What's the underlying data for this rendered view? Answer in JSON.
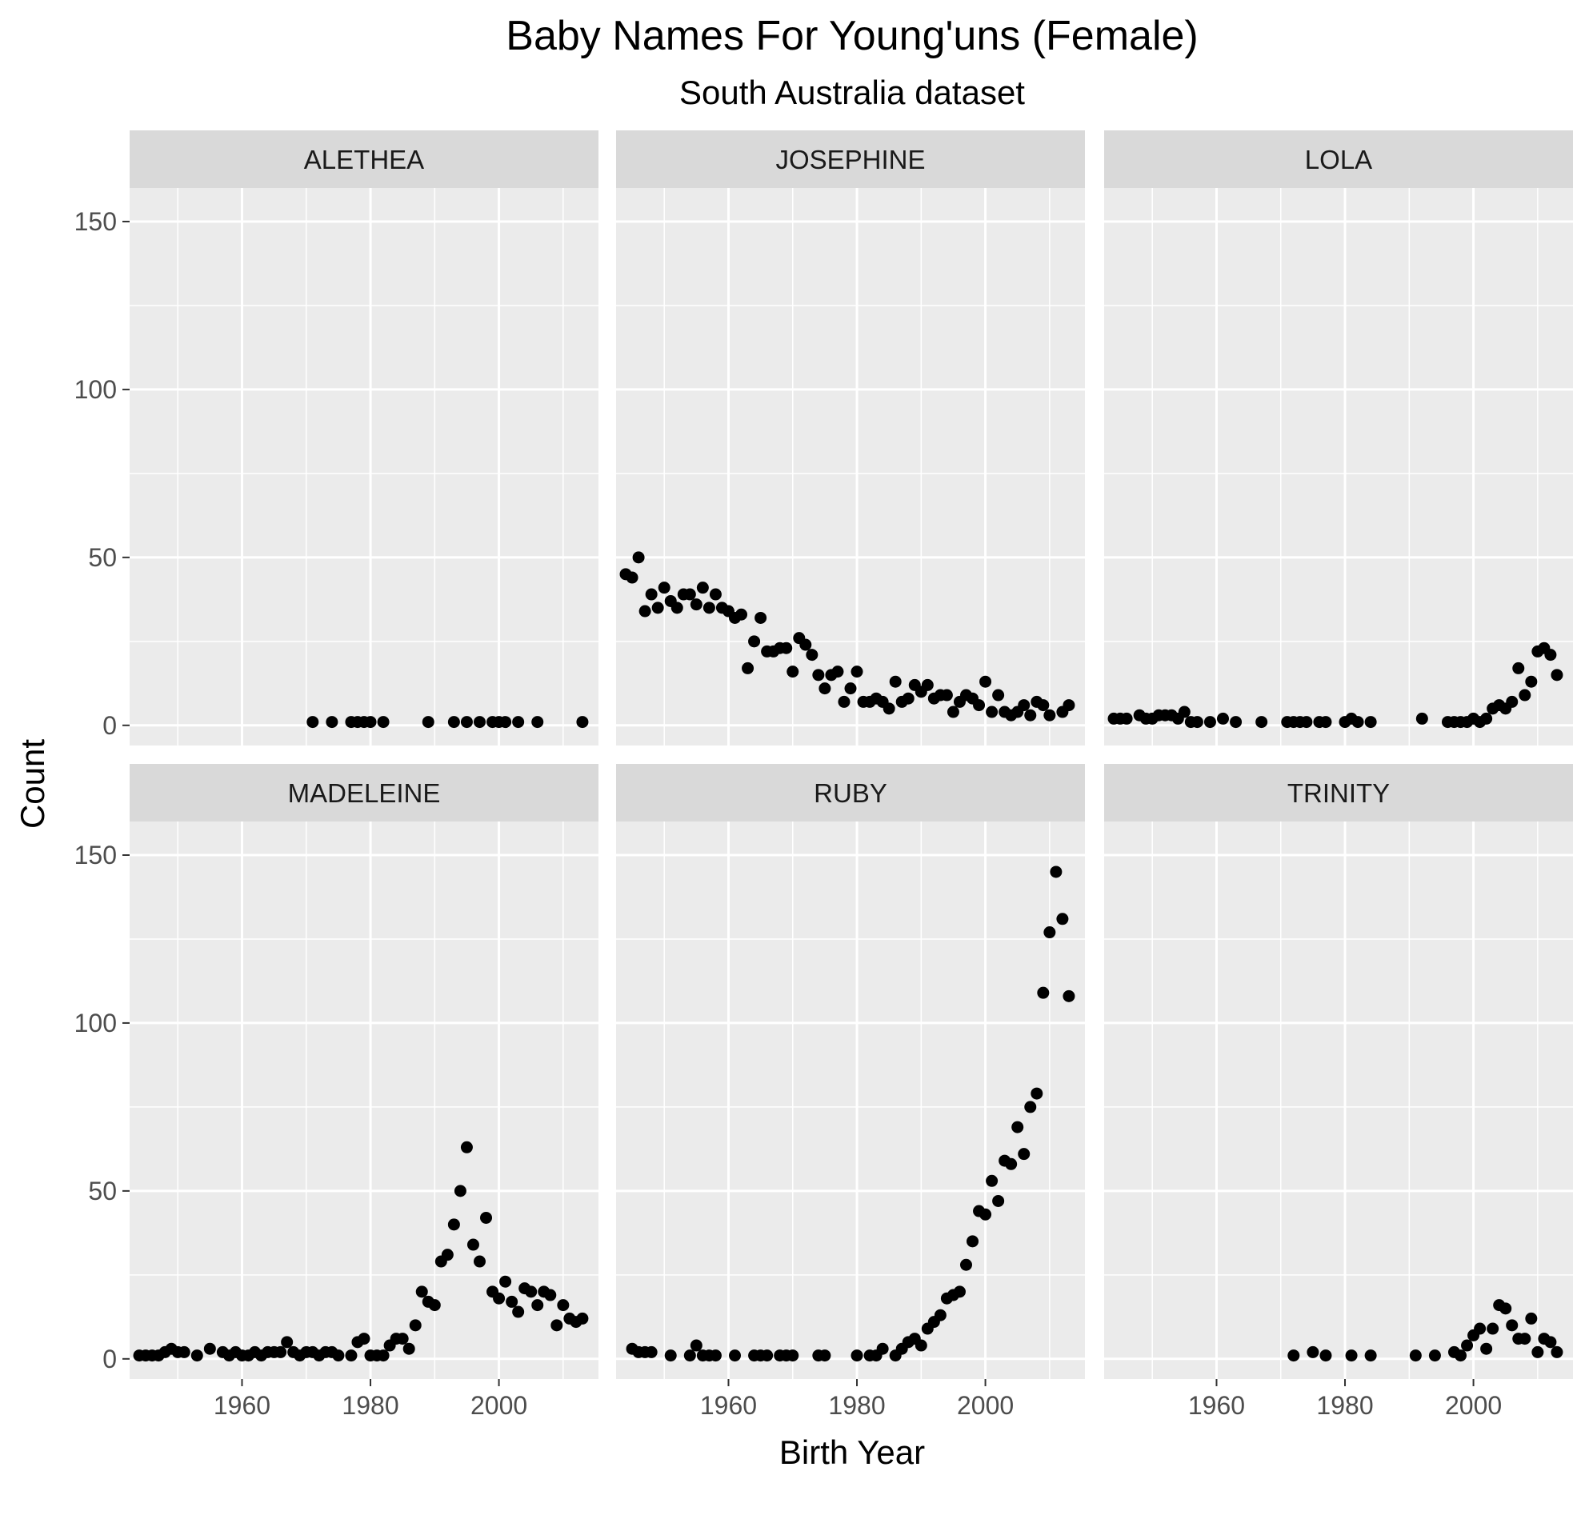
{
  "chart_data": {
    "type": "scatter",
    "title": "Baby Names For Young'uns (Female)",
    "subtitle": "South Australia dataset",
    "xlabel": "Birth Year",
    "ylabel": "Count",
    "xlim": [
      1942.5,
      2015.5
    ],
    "ylim": [
      -6,
      160
    ],
    "x_ticks": [
      1960,
      1980,
      2000
    ],
    "y_ticks": [
      0,
      50,
      100,
      150
    ],
    "grid": true,
    "layout": "facet grid 2 rows x 3 columns, shared axes",
    "colors": {
      "panel": "#ebebeb",
      "strip": "#d9d9d9",
      "gridline": "#ffffff",
      "point": "#000000"
    },
    "panels": [
      {
        "name": "ALETHEA",
        "points": [
          [
            1971,
            1
          ],
          [
            1974,
            1
          ],
          [
            1977,
            1
          ],
          [
            1978,
            1
          ],
          [
            1979,
            1
          ],
          [
            1980,
            1
          ],
          [
            1982,
            1
          ],
          [
            1989,
            1
          ],
          [
            1993,
            1
          ],
          [
            1995,
            1
          ],
          [
            1997,
            1
          ],
          [
            1999,
            1
          ],
          [
            2000,
            1
          ],
          [
            2001,
            1
          ],
          [
            2003,
            1
          ],
          [
            2006,
            1
          ],
          [
            2013,
            1
          ]
        ]
      },
      {
        "name": "JOSEPHINE",
        "points": [
          [
            1944,
            45
          ],
          [
            1945,
            44
          ],
          [
            1946,
            50
          ],
          [
            1947,
            34
          ],
          [
            1948,
            39
          ],
          [
            1949,
            35
          ],
          [
            1950,
            41
          ],
          [
            1951,
            37
          ],
          [
            1952,
            35
          ],
          [
            1953,
            39
          ],
          [
            1954,
            39
          ],
          [
            1955,
            36
          ],
          [
            1956,
            41
          ],
          [
            1957,
            35
          ],
          [
            1958,
            39
          ],
          [
            1959,
            35
          ],
          [
            1960,
            34
          ],
          [
            1961,
            32
          ],
          [
            1962,
            33
          ],
          [
            1963,
            17
          ],
          [
            1964,
            25
          ],
          [
            1965,
            32
          ],
          [
            1966,
            22
          ],
          [
            1967,
            22
          ],
          [
            1968,
            23
          ],
          [
            1969,
            23
          ],
          [
            1970,
            16
          ],
          [
            1971,
            26
          ],
          [
            1972,
            24
          ],
          [
            1973,
            21
          ],
          [
            1974,
            15
          ],
          [
            1975,
            11
          ],
          [
            1976,
            15
          ],
          [
            1977,
            16
          ],
          [
            1978,
            7
          ],
          [
            1979,
            11
          ],
          [
            1980,
            16
          ],
          [
            1981,
            7
          ],
          [
            1982,
            7
          ],
          [
            1983,
            8
          ],
          [
            1984,
            7
          ],
          [
            1985,
            5
          ],
          [
            1986,
            13
          ],
          [
            1987,
            7
          ],
          [
            1988,
            8
          ],
          [
            1989,
            12
          ],
          [
            1990,
            10
          ],
          [
            1991,
            12
          ],
          [
            1992,
            8
          ],
          [
            1993,
            9
          ],
          [
            1994,
            9
          ],
          [
            1995,
            4
          ],
          [
            1996,
            7
          ],
          [
            1997,
            9
          ],
          [
            1998,
            8
          ],
          [
            1999,
            6
          ],
          [
            2000,
            13
          ],
          [
            2001,
            4
          ],
          [
            2002,
            9
          ],
          [
            2003,
            4
          ],
          [
            2004,
            3
          ],
          [
            2005,
            4
          ],
          [
            2006,
            6
          ],
          [
            2007,
            3
          ],
          [
            2008,
            7
          ],
          [
            2009,
            6
          ],
          [
            2010,
            3
          ],
          [
            2012,
            4
          ],
          [
            2013,
            6
          ]
        ]
      },
      {
        "name": "LOLA",
        "points": [
          [
            1944,
            2
          ],
          [
            1945,
            2
          ],
          [
            1946,
            2
          ],
          [
            1948,
            3
          ],
          [
            1949,
            2
          ],
          [
            1950,
            2
          ],
          [
            1951,
            3
          ],
          [
            1952,
            3
          ],
          [
            1953,
            3
          ],
          [
            1954,
            2
          ],
          [
            1955,
            4
          ],
          [
            1956,
            1
          ],
          [
            1957,
            1
          ],
          [
            1959,
            1
          ],
          [
            1961,
            2
          ],
          [
            1963,
            1
          ],
          [
            1967,
            1
          ],
          [
            1971,
            1
          ],
          [
            1972,
            1
          ],
          [
            1973,
            1
          ],
          [
            1974,
            1
          ],
          [
            1976,
            1
          ],
          [
            1977,
            1
          ],
          [
            1980,
            1
          ],
          [
            1981,
            2
          ],
          [
            1982,
            1
          ],
          [
            1984,
            1
          ],
          [
            1992,
            2
          ],
          [
            1996,
            1
          ],
          [
            1997,
            1
          ],
          [
            1998,
            1
          ],
          [
            1999,
            1
          ],
          [
            2000,
            2
          ],
          [
            2001,
            1
          ],
          [
            2002,
            2
          ],
          [
            2003,
            5
          ],
          [
            2004,
            6
          ],
          [
            2005,
            5
          ],
          [
            2006,
            7
          ],
          [
            2007,
            17
          ],
          [
            2008,
            9
          ],
          [
            2009,
            13
          ],
          [
            2010,
            22
          ],
          [
            2011,
            23
          ],
          [
            2012,
            21
          ],
          [
            2013,
            15
          ]
        ]
      },
      {
        "name": "MADELEINE",
        "points": [
          [
            1944,
            1
          ],
          [
            1945,
            1
          ],
          [
            1946,
            1
          ],
          [
            1947,
            1
          ],
          [
            1948,
            2
          ],
          [
            1949,
            3
          ],
          [
            1950,
            2
          ],
          [
            1951,
            2
          ],
          [
            1953,
            1
          ],
          [
            1955,
            3
          ],
          [
            1957,
            2
          ],
          [
            1958,
            1
          ],
          [
            1959,
            2
          ],
          [
            1960,
            1
          ],
          [
            1961,
            1
          ],
          [
            1962,
            2
          ],
          [
            1963,
            1
          ],
          [
            1964,
            2
          ],
          [
            1965,
            2
          ],
          [
            1966,
            2
          ],
          [
            1967,
            5
          ],
          [
            1968,
            2
          ],
          [
            1969,
            1
          ],
          [
            1970,
            2
          ],
          [
            1971,
            2
          ],
          [
            1972,
            1
          ],
          [
            1973,
            2
          ],
          [
            1974,
            2
          ],
          [
            1975,
            1
          ],
          [
            1977,
            1
          ],
          [
            1978,
            5
          ],
          [
            1979,
            6
          ],
          [
            1980,
            1
          ],
          [
            1981,
            1
          ],
          [
            1982,
            1
          ],
          [
            1983,
            4
          ],
          [
            1984,
            6
          ],
          [
            1985,
            6
          ],
          [
            1986,
            3
          ],
          [
            1987,
            10
          ],
          [
            1988,
            20
          ],
          [
            1989,
            17
          ],
          [
            1990,
            16
          ],
          [
            1991,
            29
          ],
          [
            1992,
            31
          ],
          [
            1993,
            40
          ],
          [
            1994,
            50
          ],
          [
            1995,
            63
          ],
          [
            1996,
            34
          ],
          [
            1997,
            29
          ],
          [
            1998,
            42
          ],
          [
            1999,
            20
          ],
          [
            2000,
            18
          ],
          [
            2001,
            23
          ],
          [
            2002,
            17
          ],
          [
            2003,
            14
          ],
          [
            2004,
            21
          ],
          [
            2005,
            20
          ],
          [
            2006,
            16
          ],
          [
            2007,
            20
          ],
          [
            2008,
            19
          ],
          [
            2009,
            10
          ],
          [
            2010,
            16
          ],
          [
            2011,
            12
          ],
          [
            2012,
            11
          ],
          [
            2013,
            12
          ]
        ]
      },
      {
        "name": "RUBY",
        "points": [
          [
            1945,
            3
          ],
          [
            1946,
            2
          ],
          [
            1947,
            2
          ],
          [
            1948,
            2
          ],
          [
            1951,
            1
          ],
          [
            1954,
            1
          ],
          [
            1955,
            4
          ],
          [
            1956,
            1
          ],
          [
            1957,
            1
          ],
          [
            1958,
            1
          ],
          [
            1961,
            1
          ],
          [
            1964,
            1
          ],
          [
            1965,
            1
          ],
          [
            1966,
            1
          ],
          [
            1968,
            1
          ],
          [
            1969,
            1
          ],
          [
            1970,
            1
          ],
          [
            1974,
            1
          ],
          [
            1975,
            1
          ],
          [
            1980,
            1
          ],
          [
            1982,
            1
          ],
          [
            1983,
            1
          ],
          [
            1984,
            3
          ],
          [
            1986,
            1
          ],
          [
            1987,
            3
          ],
          [
            1988,
            5
          ],
          [
            1989,
            6
          ],
          [
            1990,
            4
          ],
          [
            1991,
            9
          ],
          [
            1992,
            11
          ],
          [
            1993,
            13
          ],
          [
            1994,
            18
          ],
          [
            1995,
            19
          ],
          [
            1996,
            20
          ],
          [
            1997,
            28
          ],
          [
            1998,
            35
          ],
          [
            1999,
            44
          ],
          [
            2000,
            43
          ],
          [
            2001,
            53
          ],
          [
            2002,
            47
          ],
          [
            2003,
            59
          ],
          [
            2004,
            58
          ],
          [
            2005,
            69
          ],
          [
            2006,
            61
          ],
          [
            2007,
            75
          ],
          [
            2008,
            79
          ],
          [
            2009,
            109
          ],
          [
            2010,
            127
          ],
          [
            2011,
            145
          ],
          [
            2012,
            131
          ],
          [
            2013,
            108
          ]
        ]
      },
      {
        "name": "TRINITY",
        "points": [
          [
            1972,
            1
          ],
          [
            1975,
            2
          ],
          [
            1977,
            1
          ],
          [
            1981,
            1
          ],
          [
            1984,
            1
          ],
          [
            1991,
            1
          ],
          [
            1994,
            1
          ],
          [
            1997,
            2
          ],
          [
            1998,
            1
          ],
          [
            1999,
            4
          ],
          [
            2000,
            7
          ],
          [
            2001,
            9
          ],
          [
            2002,
            3
          ],
          [
            2003,
            9
          ],
          [
            2004,
            16
          ],
          [
            2005,
            15
          ],
          [
            2006,
            10
          ],
          [
            2007,
            6
          ],
          [
            2008,
            6
          ],
          [
            2009,
            12
          ],
          [
            2010,
            2
          ],
          [
            2011,
            6
          ],
          [
            2012,
            5
          ],
          [
            2013,
            2
          ]
        ]
      }
    ]
  }
}
